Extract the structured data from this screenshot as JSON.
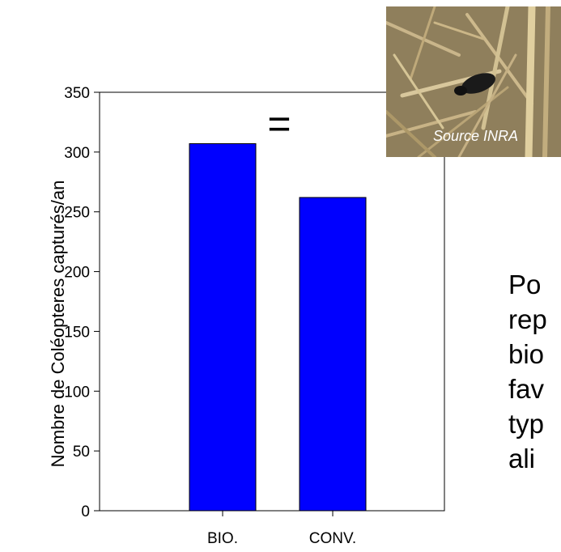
{
  "chart_data": {
    "type": "bar",
    "categories": [
      "BIO.",
      "CONV."
    ],
    "values": [
      307,
      262
    ],
    "title": "",
    "xlabel": "",
    "ylabel": "Nombre de Coléopteres capturés/an",
    "ylim": [
      0,
      350
    ],
    "yticks": [
      "0",
      "50",
      "100",
      "150",
      "200",
      "250",
      "300",
      "350"
    ],
    "bar_color": "#0000ff",
    "grid": false,
    "annotation": "="
  },
  "photo": {
    "caption": "Source INRA",
    "subject": "ground-beetle-on-straw"
  },
  "side_text_lines": [
    "Po",
    "rep",
    "bio",
    "fav",
    "typ",
    "ali"
  ]
}
